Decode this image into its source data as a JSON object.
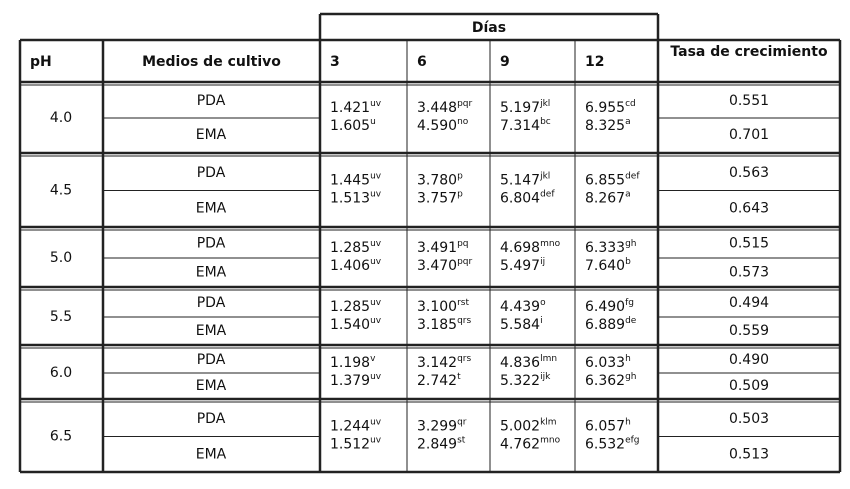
{
  "header": {
    "days_title": "Días",
    "columns": [
      "pH",
      "Medios de cultivo",
      "3",
      "6",
      "9",
      "12",
      "Tasa de crecimiento"
    ]
  },
  "groups": [
    {
      "ph": "4.0",
      "rows": [
        {
          "medium": "PDA",
          "days": [
            {
              "v": "1.421",
              "s": "uv"
            },
            {
              "v": "3.448",
              "s": "pqr"
            },
            {
              "v": "5.197",
              "s": "jkl"
            },
            {
              "v": "6.955",
              "s": "cd"
            }
          ],
          "rate": "0.551"
        },
        {
          "medium": "EMA",
          "days": [
            {
              "v": "1.605",
              "s": "u"
            },
            {
              "v": "4.590",
              "s": "no"
            },
            {
              "v": "7.314",
              "s": "bc"
            },
            {
              "v": "8.325",
              "s": "a"
            }
          ],
          "rate": "0.701"
        }
      ]
    },
    {
      "ph": "4.5",
      "rows": [
        {
          "medium": "PDA",
          "days": [
            {
              "v": "1.445",
              "s": "uv"
            },
            {
              "v": "3.780",
              "s": "p"
            },
            {
              "v": "5.147",
              "s": "jkl"
            },
            {
              "v": "6.855",
              "s": "def"
            }
          ],
          "rate": "0.563"
        },
        {
          "medium": "EMA",
          "days": [
            {
              "v": "1.513",
              "s": "uv"
            },
            {
              "v": "3.757",
              "s": "p"
            },
            {
              "v": "6.804",
              "s": "def"
            },
            {
              "v": "8.267",
              "s": "a"
            }
          ],
          "rate": "0.643"
        }
      ]
    },
    {
      "ph": "5.0",
      "rows": [
        {
          "medium": "PDA",
          "days": [
            {
              "v": "1.285",
              "s": "uv"
            },
            {
              "v": "3.491",
              "s": "pq"
            },
            {
              "v": "4.698",
              "s": "mno"
            },
            {
              "v": "6.333",
              "s": "gh"
            }
          ],
          "rate": "0.515"
        },
        {
          "medium": "EMA",
          "days": [
            {
              "v": "1.406",
              "s": "uv"
            },
            {
              "v": "3.470",
              "s": "pqr"
            },
            {
              "v": "5.497",
              "s": "ij"
            },
            {
              "v": "7.640",
              "s": "b"
            }
          ],
          "rate": "0.573"
        }
      ]
    },
    {
      "ph": "5.5",
      "rows": [
        {
          "medium": "PDA",
          "days": [
            {
              "v": "1.285",
              "s": "uv"
            },
            {
              "v": "3.100",
              "s": "rst"
            },
            {
              "v": "4.439",
              "s": "o"
            },
            {
              "v": "6.490",
              "s": "fg"
            }
          ],
          "rate": "0.494"
        },
        {
          "medium": "EMA",
          "days": [
            {
              "v": "1.540",
              "s": "uv"
            },
            {
              "v": "3.185",
              "s": "qrs"
            },
            {
              "v": "5.584",
              "s": "i"
            },
            {
              "v": "6.889",
              "s": "de"
            }
          ],
          "rate": "0.559"
        }
      ]
    },
    {
      "ph": "6.0",
      "rows": [
        {
          "medium": "PDA",
          "days": [
            {
              "v": "1.198",
              "s": "v"
            },
            {
              "v": "3.142",
              "s": "qrs"
            },
            {
              "v": "4.836",
              "s": "lmn"
            },
            {
              "v": "6.033",
              "s": "h"
            }
          ],
          "rate": "0.490"
        },
        {
          "medium": "EMA",
          "days": [
            {
              "v": "1.379",
              "s": "uv"
            },
            {
              "v": "2.742",
              "s": "t"
            },
            {
              "v": "5.322",
              "s": "ijk"
            },
            {
              "v": "6.362",
              "s": "gh"
            }
          ],
          "rate": "0.509"
        }
      ]
    },
    {
      "ph": "6.5",
      "rows": [
        {
          "medium": "PDA",
          "days": [
            {
              "v": "1.244",
              "s": "uv"
            },
            {
              "v": "3.299",
              "s": "qr"
            },
            {
              "v": "5.002",
              "s": "klm"
            },
            {
              "v": "6.057",
              "s": "h"
            }
          ],
          "rate": "0.503"
        },
        {
          "medium": "EMA",
          "days": [
            {
              "v": "1.512",
              "s": "uv"
            },
            {
              "v": "2.849",
              "s": "st"
            },
            {
              "v": "4.762",
              "s": "mno"
            },
            {
              "v": "6.532",
              "s": "efg"
            }
          ],
          "rate": "0.513"
        }
      ]
    }
  ]
}
